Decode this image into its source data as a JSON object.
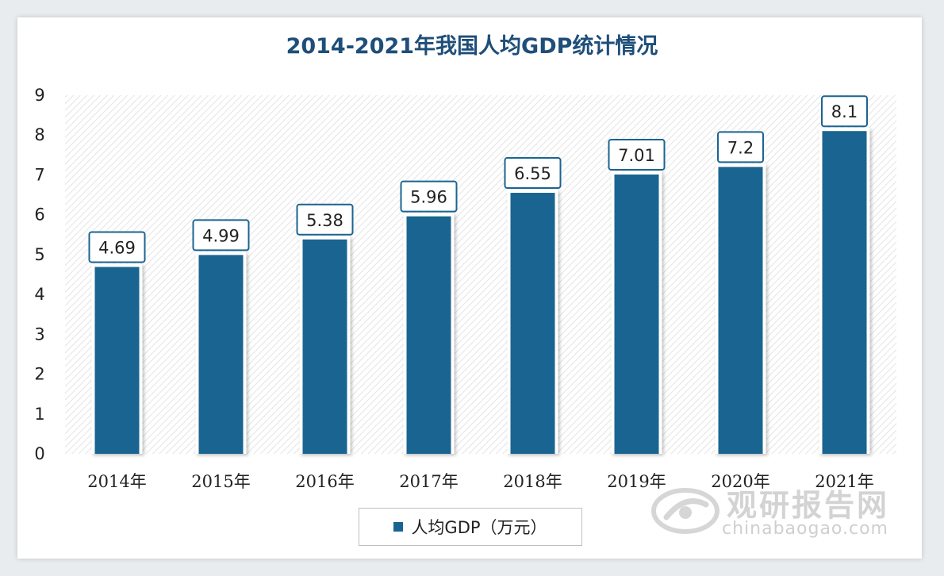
{
  "chart_data": {
    "type": "bar",
    "title": "2014-2021年我国人均GDP统计情况",
    "categories": [
      "2014年",
      "2015年",
      "2016年",
      "2017年",
      "2018年",
      "2019年",
      "2020年",
      "2021年"
    ],
    "series": [
      {
        "name": "人均GDP（万元）",
        "values": [
          4.69,
          4.99,
          5.38,
          5.96,
          6.55,
          7.01,
          7.2,
          8.1
        ]
      }
    ],
    "value_labels": [
      "4.69",
      "4.99",
      "5.38",
      "5.96",
      "6.55",
      "7.01",
      "7.2",
      "8.1"
    ],
    "ylim": [
      0,
      9
    ],
    "yticks": [
      "0",
      "1",
      "2",
      "3",
      "4",
      "5",
      "6",
      "7",
      "8",
      "9"
    ],
    "grid": false,
    "legend_position": "bottom-center",
    "bar_color": "#1a6491"
  },
  "watermark": {
    "name": "观研报告网",
    "url": "chinabaogao.com"
  }
}
